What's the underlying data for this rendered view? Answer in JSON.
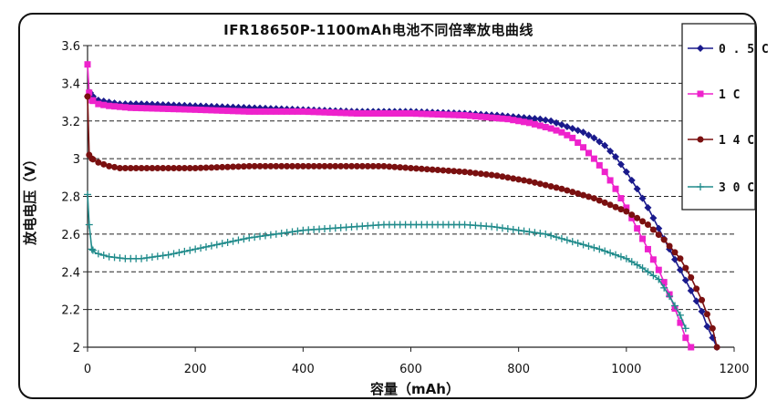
{
  "chart_data": {
    "type": "line",
    "title": "IFR18650P-1100mAh电池不同倍率放电曲线",
    "xlabel": "容量（mAh）",
    "ylabel": "放电电压（V）",
    "xlim": [
      0,
      1200
    ],
    "ylim": [
      2,
      3.6
    ],
    "xticks": [
      "0",
      "200",
      "400",
      "600",
      "800",
      "1000",
      "1200"
    ],
    "yticks": [
      "2",
      "2.2",
      "2.4",
      "2.6",
      "2.8",
      "3",
      "3.2",
      "3.4",
      "3.6"
    ],
    "grid": "horizontal dashed",
    "legend_position": "right",
    "series": [
      {
        "name": "0.5C",
        "color": "#1a1a8c",
        "marker": "diamond",
        "x": [
          0,
          5,
          10,
          20,
          40,
          60,
          100,
          200,
          300,
          400,
          500,
          600,
          700,
          760,
          800,
          840,
          860,
          880,
          900,
          920,
          940,
          960,
          980,
          1000,
          1020,
          1040,
          1060,
          1080,
          1100,
          1120,
          1140,
          1150,
          1160,
          1168
        ],
        "y": [
          3.33,
          3.35,
          3.33,
          3.31,
          3.3,
          3.29,
          3.29,
          3.28,
          3.27,
          3.26,
          3.25,
          3.25,
          3.24,
          3.23,
          3.22,
          3.21,
          3.2,
          3.18,
          3.16,
          3.14,
          3.11,
          3.07,
          3.01,
          2.93,
          2.84,
          2.74,
          2.63,
          2.52,
          2.41,
          2.3,
          2.19,
          2.11,
          2.05,
          2.0
        ]
      },
      {
        "name": "1C",
        "color": "#ee22cc",
        "marker": "square",
        "x": [
          0,
          3,
          8,
          20,
          40,
          80,
          200,
          300,
          400,
          500,
          600,
          700,
          780,
          820,
          860,
          880,
          900,
          920,
          940,
          960,
          980,
          1000,
          1020,
          1040,
          1060,
          1080,
          1100,
          1110,
          1120
        ],
        "y": [
          3.5,
          3.35,
          3.31,
          3.29,
          3.28,
          3.27,
          3.26,
          3.25,
          3.25,
          3.24,
          3.24,
          3.23,
          3.21,
          3.19,
          3.16,
          3.14,
          3.11,
          3.06,
          3.0,
          2.93,
          2.84,
          2.74,
          2.63,
          2.52,
          2.41,
          2.28,
          2.13,
          2.05,
          2.0
        ]
      },
      {
        "name": "14C",
        "color": "#7a1010",
        "marker": "circle",
        "x": [
          0,
          3,
          8,
          20,
          40,
          60,
          100,
          150,
          200,
          300,
          400,
          500,
          550,
          600,
          700,
          760,
          820,
          880,
          940,
          1000,
          1040,
          1070,
          1100,
          1120,
          1140,
          1160,
          1168
        ],
        "y": [
          3.33,
          3.02,
          3.0,
          2.98,
          2.96,
          2.95,
          2.95,
          2.95,
          2.95,
          2.96,
          2.96,
          2.96,
          2.96,
          2.95,
          2.93,
          2.91,
          2.88,
          2.84,
          2.79,
          2.72,
          2.65,
          2.57,
          2.47,
          2.37,
          2.25,
          2.1,
          2.0
        ]
      },
      {
        "name": "30C",
        "color": "#208b8b",
        "marker": "plus",
        "x": [
          0,
          3,
          8,
          15,
          40,
          70,
          100,
          150,
          200,
          250,
          300,
          350,
          400,
          450,
          500,
          550,
          600,
          650,
          700,
          750,
          800,
          850,
          900,
          950,
          1000,
          1030,
          1060,
          1080,
          1100,
          1110
        ],
        "y": [
          2.81,
          2.65,
          2.52,
          2.5,
          2.48,
          2.47,
          2.47,
          2.49,
          2.52,
          2.55,
          2.58,
          2.6,
          2.62,
          2.63,
          2.64,
          2.65,
          2.65,
          2.65,
          2.65,
          2.64,
          2.62,
          2.6,
          2.56,
          2.52,
          2.47,
          2.42,
          2.36,
          2.27,
          2.17,
          2.1
        ]
      }
    ]
  }
}
